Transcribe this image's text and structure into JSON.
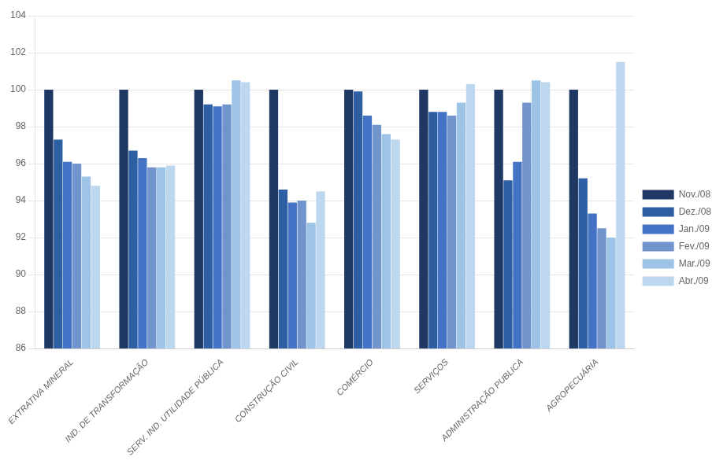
{
  "chart_data": {
    "type": "bar",
    "categories": [
      "EXTRATIVA MINERAL",
      "IND. DE TRANSFORMAÇÃO",
      "SERV. IND. UTILIDADE PÚBLICA",
      "CONSTRUÇÃO CIVIL",
      "COMÉRCIO",
      "SERVIÇOS",
      "ADMINISTRAÇÃO PUBLICA",
      "AGROPECUÁRIA"
    ],
    "series": [
      {
        "name": "Nov./08",
        "color": "#1F3864",
        "values": [
          100.0,
          100.0,
          100.0,
          100.0,
          100.0,
          100.0,
          100.0,
          100.0
        ]
      },
      {
        "name": "Dez./08",
        "color": "#2E5FA3",
        "values": [
          97.3,
          96.7,
          99.2,
          94.6,
          99.9,
          98.8,
          95.1,
          95.2
        ]
      },
      {
        "name": "Jan./09",
        "color": "#4472C4",
        "values": [
          96.1,
          96.3,
          99.1,
          93.9,
          98.6,
          98.8,
          96.1,
          93.3
        ]
      },
      {
        "name": "Fev./09",
        "color": "#7094CB",
        "values": [
          96.0,
          95.8,
          99.2,
          94.0,
          98.1,
          98.6,
          99.3,
          92.5
        ]
      },
      {
        "name": "Mar./09",
        "color": "#9DC3E6",
        "values": [
          95.3,
          95.8,
          100.5,
          92.8,
          97.6,
          99.3,
          100.5,
          92.0
        ]
      },
      {
        "name": "Abr./09",
        "color": "#BDD7EE",
        "values": [
          94.8,
          95.9,
          100.4,
          94.5,
          97.3,
          100.3,
          100.4,
          101.5
        ]
      }
    ],
    "ylim": [
      86,
      104
    ],
    "yticks": [
      86,
      88,
      90,
      92,
      94,
      96,
      98,
      100,
      102,
      104
    ],
    "grid": true,
    "legend": "right"
  }
}
